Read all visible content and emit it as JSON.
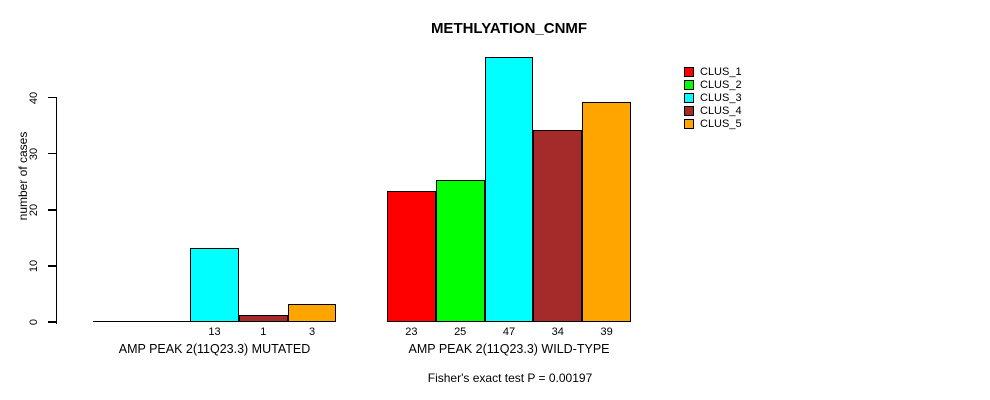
{
  "chart_data": {
    "type": "bar",
    "title": "METHLYATION_CNMF",
    "ylabel": "number of cases",
    "xlabel": "",
    "footer": "Fisher's exact test P = 0.00197",
    "categories": [
      "AMP PEAK 2(11Q23.3) MUTATED",
      "AMP PEAK 2(11Q23.3) WILD-TYPE"
    ],
    "series": [
      {
        "name": "CLUS_1",
        "color": "#ff0000",
        "values": [
          0,
          23
        ],
        "labels": [
          "",
          "23"
        ]
      },
      {
        "name": "CLUS_2",
        "color": "#00ff00",
        "values": [
          0,
          25
        ],
        "labels": [
          "",
          "25"
        ]
      },
      {
        "name": "CLUS_3",
        "color": "#00ffff",
        "values": [
          13,
          47
        ],
        "labels": [
          "13",
          "47"
        ]
      },
      {
        "name": "CLUS_4",
        "color": "#a52a2a",
        "values": [
          1,
          34
        ],
        "labels": [
          "1",
          "34"
        ]
      },
      {
        "name": "CLUS_5",
        "color": "#ffa500",
        "values": [
          3,
          39
        ],
        "labels": [
          "3",
          "39"
        ]
      }
    ],
    "yticks": [
      0,
      10,
      20,
      30,
      40
    ],
    "ylim": [
      0,
      47
    ],
    "grid": false,
    "legend": {
      "position": "right",
      "entries": [
        "CLUS_1",
        "CLUS_2",
        "CLUS_3",
        "CLUS_4",
        "CLUS_5"
      ]
    },
    "axis_color": "#000000",
    "bar_border_color": "#000000",
    "background_color": "#ffffff"
  }
}
